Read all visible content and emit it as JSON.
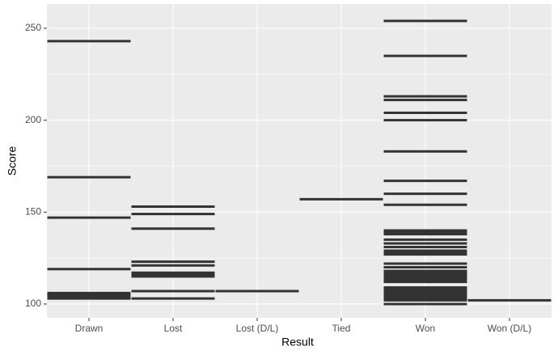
{
  "chart_data": {
    "type": "strip",
    "x_label": "Result",
    "y_label": "Score",
    "categories": [
      "Drawn",
      "Lost",
      "Lost (D/L)",
      "Tied",
      "Won",
      "Won (D/L)"
    ],
    "values": [
      [
        243,
        169,
        147,
        119,
        106,
        105,
        104,
        103
      ],
      [
        153,
        149,
        141,
        123,
        121,
        117,
        116,
        115,
        107,
        103
      ],
      [
        107
      ],
      [
        157
      ],
      [
        254,
        235,
        213,
        211,
        204,
        200,
        183,
        167,
        160,
        154,
        140,
        139,
        138,
        135,
        133,
        131,
        129,
        128,
        127,
        122,
        120,
        118,
        117,
        116,
        115,
        114,
        113,
        112,
        109,
        108,
        107,
        106,
        105,
        104,
        103,
        102,
        100
      ],
      [
        102
      ]
    ],
    "color": "#333333",
    "ylim": [
      92.5,
      263.2
    ],
    "yticks": [
      100,
      150,
      200,
      250
    ],
    "grid": true
  }
}
